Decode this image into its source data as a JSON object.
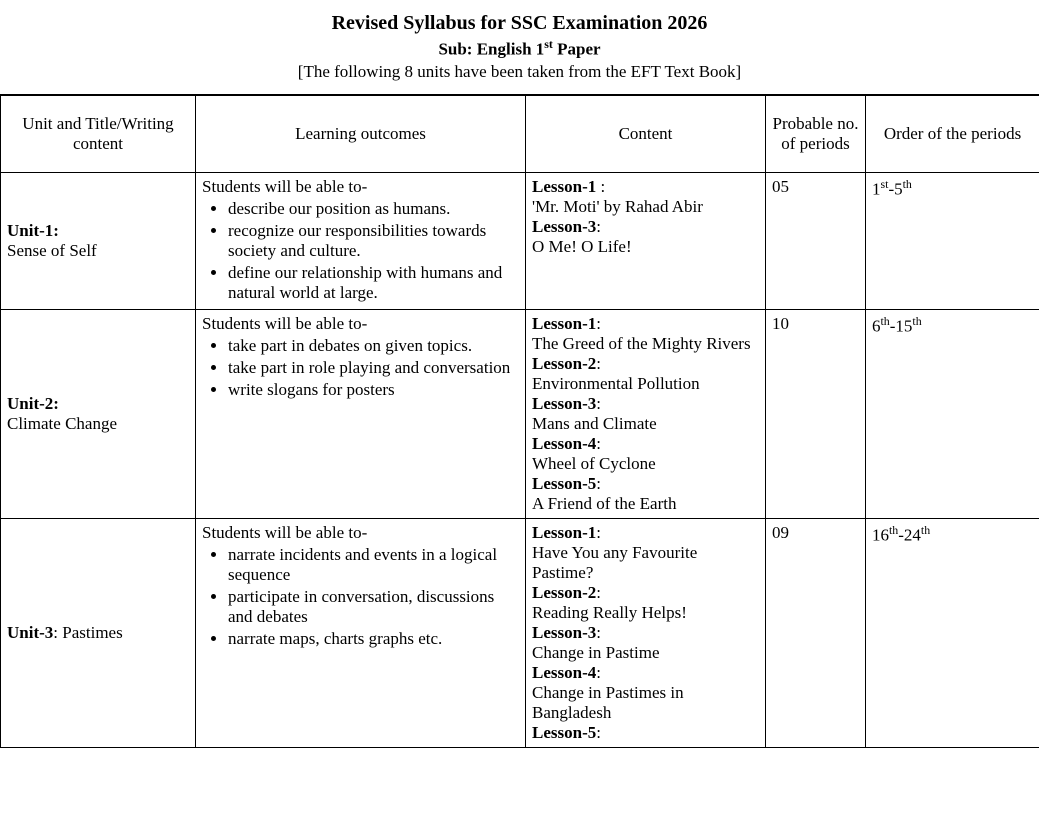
{
  "header": {
    "title": "Revised Syllabus for SSC Examination 2026",
    "subtitle_prefix": "Sub: English 1",
    "subtitle_sup": "st",
    "subtitle_suffix": " Paper",
    "note": "[The following 8 units have been taken from the EFT Text Book]"
  },
  "columns": {
    "c1": "Unit and Title/Writing content",
    "c2": "Learning outcomes",
    "c3": "Content",
    "c4": "Probable no. of periods",
    "c5": "Order of the periods"
  },
  "rows": [
    {
      "unit_label": "Unit-1:",
      "unit_title": "Sense of Self",
      "outcomes_lead": "Students will be able to-",
      "outcomes": [
        "describe our position as humans.",
        "recognize our responsibilities towards society and culture.",
        "define our relationship with humans and natural world at large."
      ],
      "content": [
        {
          "label": "Lesson-1",
          "suffix": " :",
          "text": "'Mr. Moti' by Rahad Abir"
        },
        {
          "label": "Lesson-3",
          "suffix": ":",
          "text": "O Me! O Life!"
        }
      ],
      "periods": "05",
      "order_a": "1",
      "order_a_sup": "st",
      "order_b": "5",
      "order_b_sup": "th"
    },
    {
      "unit_label": "Unit-2:",
      "unit_title": "Climate Change",
      "outcomes_lead": "Students will be able to-",
      "outcomes": [
        "take part in debates on given topics.",
        "take part in role playing and conversation",
        "write slogans for posters"
      ],
      "content": [
        {
          "label": "Lesson-1",
          "suffix": ":",
          "text": "The Greed of the Mighty Rivers",
          "justify": true
        },
        {
          "label": "Lesson-2",
          "suffix": ":",
          "text": "Environmental Pollution"
        },
        {
          "label": "Lesson-3",
          "suffix": ":",
          "text": "Mans and Climate"
        },
        {
          "label": "Lesson-4",
          "suffix": ":",
          "text": "Wheel of Cyclone"
        },
        {
          "label": "Lesson-5",
          "suffix": ":",
          "text": "A Friend of the Earth"
        }
      ],
      "periods": "10",
      "order_a": "6",
      "order_a_sup": "th",
      "order_b": "15",
      "order_b_sup": "th"
    },
    {
      "unit_label": "Unit-3",
      "unit_title": ": Pastimes",
      "inline_title": true,
      "outcomes_lead": "Students will be able to-",
      "outcomes": [
        "narrate incidents and events in a logical sequence",
        " participate in conversation, discussions and debates",
        "narrate maps, charts graphs etc."
      ],
      "content": [
        {
          "label": "Lesson-1",
          "suffix": ":",
          "text": "Have You any Favourite Pastime?"
        },
        {
          "label": "Lesson-2",
          "suffix": ":",
          "text": "Reading Really Helps!"
        },
        {
          "label": "Lesson-3",
          "suffix": ":",
          "text": "Change in Pastime"
        },
        {
          "label": "Lesson-4",
          "suffix": ":",
          "text": "Change in Pastimes in Bangladesh"
        },
        {
          "label": "Lesson-5",
          "suffix": ":",
          "text": ""
        }
      ],
      "periods": "09",
      "order_a": "16",
      "order_a_sup": "th",
      "order_b": "24",
      "order_b_sup": "th"
    }
  ]
}
